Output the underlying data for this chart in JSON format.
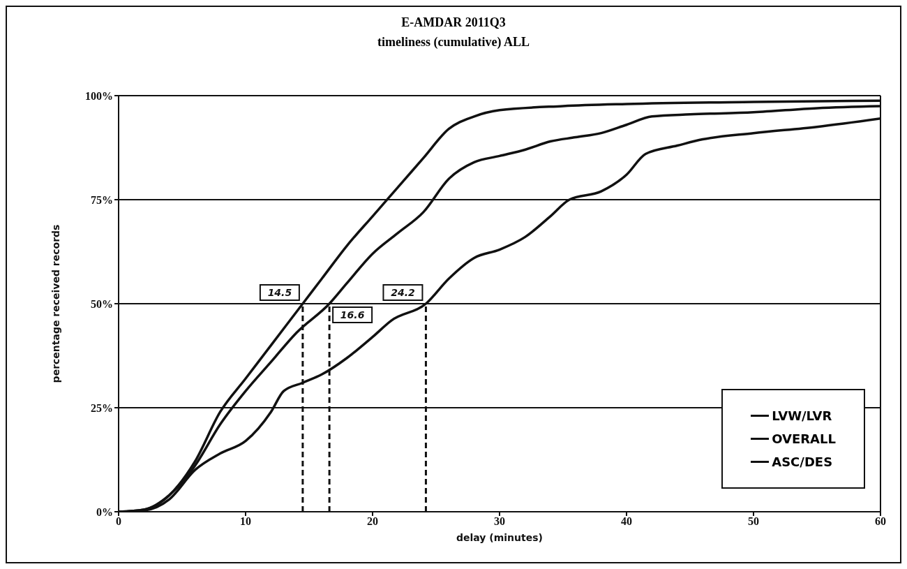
{
  "chart_data": {
    "type": "line",
    "title": "E-AMDAR 2011Q3",
    "subtitle": "timeliness (cumulative) ALL",
    "xlabel": "delay (minutes)",
    "ylabel": "percentage received records",
    "xlim": [
      0,
      60
    ],
    "xticks": [
      0,
      10,
      20,
      30,
      40,
      50,
      60
    ],
    "ylim": [
      0,
      100
    ],
    "yticks": [
      {
        "value": 0,
        "label": "0%"
      },
      {
        "value": 25,
        "label": "25%"
      },
      {
        "value": 50,
        "label": "50%"
      },
      {
        "value": 75,
        "label": "75%"
      },
      {
        "value": 100,
        "label": "100%"
      }
    ],
    "grid": "y",
    "legend": "bottom right",
    "marker": "none",
    "line_style": "solid",
    "series": [
      {
        "name": "LVW/LVR",
        "color": "#111111",
        "x": [
          0,
          2,
          4,
          6,
          8,
          10,
          12,
          14.5,
          16,
          18,
          20,
          22,
          24,
          26,
          28,
          30,
          35,
          40,
          50,
          60
        ],
        "values": [
          0,
          0.5,
          4,
          12,
          24,
          32,
          40,
          50,
          56,
          64,
          71,
          78,
          85,
          92,
          95,
          96.5,
          97.5,
          98,
          98.5,
          98.8
        ]
      },
      {
        "name": "OVERALL",
        "color": "#111111",
        "x": [
          0,
          2,
          4,
          6,
          8,
          10,
          12,
          14,
          16.6,
          18,
          20,
          22,
          24,
          26,
          28,
          30,
          32,
          34,
          36,
          38,
          40,
          42,
          45,
          50,
          55,
          60
        ],
        "values": [
          0,
          0.5,
          4,
          11,
          21,
          29,
          36,
          43,
          50,
          55,
          62,
          67,
          72,
          80,
          84,
          85.5,
          87,
          89,
          90,
          91,
          93,
          95,
          95.5,
          96,
          97,
          97.5
        ]
      },
      {
        "name": "ASC/DES",
        "color": "#111111",
        "x": [
          0,
          2,
          4,
          6,
          8,
          10,
          12,
          13,
          14.5,
          16,
          18,
          20,
          21.5,
          24.2,
          26,
          28,
          30,
          32,
          34,
          35.5,
          38,
          40,
          41.5,
          44,
          46,
          50,
          55,
          60
        ],
        "values": [
          0,
          0.3,
          3,
          10,
          14,
          17,
          24,
          29,
          31,
          33,
          37,
          42,
          46,
          50,
          56,
          61,
          63,
          66,
          71,
          75,
          77,
          81,
          86,
          88,
          89.5,
          91,
          92.5,
          94.5
        ]
      }
    ],
    "annotations": [
      {
        "text": "14.5",
        "x": 14.5,
        "y": 50
      },
      {
        "text": "16.6",
        "x": 16.6,
        "y": 50
      },
      {
        "text": "24.2",
        "x": 24.2,
        "y": 50
      }
    ]
  }
}
